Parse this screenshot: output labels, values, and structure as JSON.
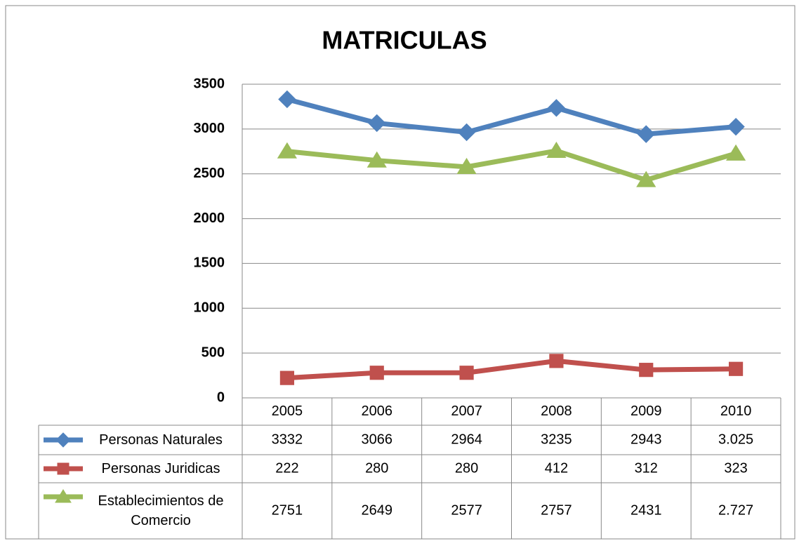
{
  "chart_data": {
    "type": "line",
    "title": "MATRICULAS",
    "categories": [
      "2005",
      "2006",
      "2007",
      "2008",
      "2009",
      "2010"
    ],
    "series": [
      {
        "name": "Personas Naturales",
        "color": "#4f81bd",
        "marker": "diamond",
        "values": [
          3332,
          3066,
          2964,
          3235,
          2943,
          3025
        ],
        "value_labels": [
          "3332",
          "3066",
          "2964",
          "3235",
          "2943",
          "3.025"
        ]
      },
      {
        "name": "Personas Juridicas",
        "color": "#c0504d",
        "marker": "square",
        "values": [
          222,
          280,
          280,
          412,
          312,
          323
        ]
      },
      {
        "name": "Establecimientos de Comercio",
        "color": "#9bbb59",
        "marker": "triangle",
        "values": [
          2751,
          2649,
          2577,
          2757,
          2431,
          2727
        ],
        "value_labels": [
          "2751",
          "2649",
          "2577",
          "2757",
          "2431",
          "2.727"
        ]
      }
    ],
    "ylim": [
      0,
      3500
    ],
    "yticks": [
      0,
      500,
      1000,
      1500,
      2000,
      2500,
      3000,
      3500
    ],
    "grid": true,
    "data_table": true
  }
}
